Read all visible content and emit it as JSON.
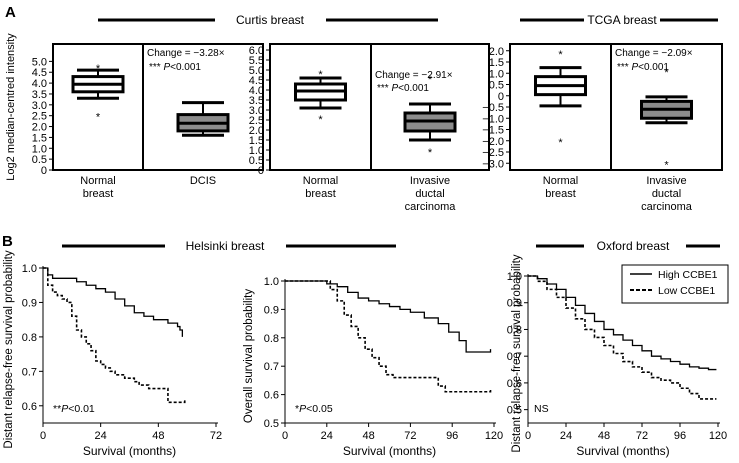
{
  "panels": {
    "a": "A",
    "b": "B"
  },
  "groups": {
    "curtis": "Curtis breast",
    "tcga": "TCGA breast",
    "helsinki": "Helsinki breast",
    "oxford": "Oxford breast"
  },
  "colors": {
    "normal_box": "#ffffff",
    "tumor_box": "#8c8c8c",
    "ink": "#000000"
  },
  "chart_data": [
    {
      "type": "box",
      "id": "curtis-dcis",
      "group": "Curtis breast",
      "ylabel": "Log2 median-centred intensity",
      "ylim": [
        0,
        5.8
      ],
      "yticks": [
        0,
        0.5,
        1,
        1.5,
        2,
        2.5,
        3,
        3.5,
        4,
        4.5,
        5
      ],
      "ytick_labels": [
        "0",
        "0.5",
        "1.0",
        "1.5",
        "2.0",
        "2.5",
        "3.0",
        "3.5",
        "4.0",
        "4.5",
        "5.0"
      ],
      "categories": [
        "Normal\nbreast",
        "DCIS"
      ],
      "boxes": [
        {
          "min": 3.3,
          "q1": 3.6,
          "median": 3.95,
          "q3": 4.3,
          "max": 4.6,
          "outliers": [
            4.75,
            2.5
          ]
        },
        {
          "min": 1.6,
          "q1": 1.8,
          "median": 2.15,
          "q3": 2.55,
          "max": 3.1,
          "outliers": []
        }
      ],
      "annotation": {
        "change": "Change = −3.28×",
        "stars": "***",
        "p": "P<0.001"
      }
    },
    {
      "type": "box",
      "id": "curtis-idc",
      "group": "Curtis breast",
      "ylim": [
        0,
        6.3
      ],
      "yticks": [
        0,
        0.5,
        1,
        1.5,
        2,
        2.5,
        3,
        3.5,
        4,
        4.5,
        5,
        5.5,
        6
      ],
      "ytick_labels": [
        "0",
        "0.5",
        "1.0",
        "1.5",
        "2.0",
        "2.5",
        "3.0",
        "3.5",
        "4.0",
        "4.5",
        "5.0",
        "5.5",
        "6.0"
      ],
      "categories": [
        "Normal\nbreast",
        "Invasive\nductal\ncarcinoma"
      ],
      "boxes": [
        {
          "min": 3.1,
          "q1": 3.5,
          "median": 3.95,
          "q3": 4.3,
          "max": 4.6,
          "outliers": [
            4.85,
            2.6
          ]
        },
        {
          "min": 1.5,
          "q1": 1.95,
          "median": 2.45,
          "q3": 2.85,
          "max": 3.3,
          "outliers": [
            4.6,
            0.95
          ]
        }
      ],
      "annotation": {
        "change": "Change = −2.91×",
        "stars": "***",
        "p": "P<0.001"
      }
    },
    {
      "type": "box",
      "id": "tcga",
      "group": "TCGA breast",
      "ylim": [
        -3.3,
        2.3
      ],
      "yticks": [
        -3,
        -2.5,
        -2,
        -1.5,
        -1,
        -0.5,
        0,
        0.5,
        1,
        1.5,
        2
      ],
      "ytick_labels": [
        "−3.0",
        "−2.5",
        "−2.0",
        "−1.5",
        "−1.0",
        "−0.5",
        "0",
        "0.5",
        "1.0",
        "1.5",
        "2.0"
      ],
      "categories": [
        "Normal\nbreast",
        "Invasive\nductal\ncarcinoma"
      ],
      "boxes": [
        {
          "min": -0.45,
          "q1": 0.05,
          "median": 0.45,
          "q3": 0.85,
          "max": 1.25,
          "outliers": [
            1.9,
            -2.0
          ]
        },
        {
          "min": -1.2,
          "q1": -1.0,
          "median": -0.6,
          "q3": -0.25,
          "max": -0.05,
          "outliers": [
            1.1,
            -3.0
          ]
        }
      ],
      "annotation": {
        "change": "Change = −2.09×",
        "stars": "***",
        "p": "P<0.001"
      }
    },
    {
      "type": "line",
      "id": "helsinki-drfs",
      "group": "Helsinki breast",
      "xlabel": "Survival (months)",
      "ylabel": "Distant relapse-free survival probability",
      "xlim": [
        0,
        72
      ],
      "ylim": [
        0.55,
        1.0
      ],
      "xticks": [
        0,
        24,
        48,
        72
      ],
      "yticks": [
        0.6,
        0.7,
        0.8,
        0.9,
        1.0
      ],
      "ytick_labels": [
        "0.6",
        "0.7",
        "0.8",
        "0.9",
        "1.0"
      ],
      "series": [
        {
          "name": "High CCBE1",
          "style": "solid",
          "points": [
            [
              0,
              1.0
            ],
            [
              2,
              0.98
            ],
            [
              4,
              0.97
            ],
            [
              10,
              0.97
            ],
            [
              14,
              0.96
            ],
            [
              18,
              0.95
            ],
            [
              22,
              0.94
            ],
            [
              26,
              0.93
            ],
            [
              30,
              0.91
            ],
            [
              34,
              0.89
            ],
            [
              38,
              0.87
            ],
            [
              42,
              0.86
            ],
            [
              46,
              0.85
            ],
            [
              50,
              0.85
            ],
            [
              52,
              0.84
            ],
            [
              54,
              0.84
            ],
            [
              56,
              0.83
            ],
            [
              57,
              0.82
            ],
            [
              58,
              0.8
            ]
          ]
        },
        {
          "name": "Low CCBE1",
          "style": "dashed",
          "points": [
            [
              0,
              1.0
            ],
            [
              2,
              0.95
            ],
            [
              4,
              0.93
            ],
            [
              6,
              0.92
            ],
            [
              8,
              0.91
            ],
            [
              10,
              0.9
            ],
            [
              12,
              0.86
            ],
            [
              14,
              0.82
            ],
            [
              16,
              0.8
            ],
            [
              18,
              0.78
            ],
            [
              20,
              0.76
            ],
            [
              22,
              0.73
            ],
            [
              24,
              0.72
            ],
            [
              26,
              0.71
            ],
            [
              28,
              0.7
            ],
            [
              30,
              0.69
            ],
            [
              34,
              0.68
            ],
            [
              38,
              0.67
            ],
            [
              40,
              0.66
            ],
            [
              44,
              0.65
            ],
            [
              50,
              0.65
            ],
            [
              52,
              0.61
            ],
            [
              58,
              0.61
            ],
            [
              59,
              0.62
            ]
          ]
        }
      ],
      "annotation": {
        "stars": "**",
        "p": "P<0.01"
      }
    },
    {
      "type": "line",
      "id": "helsinki-os",
      "group": "Helsinki breast",
      "xlabel": "Survival (months)",
      "ylabel": "Overall survival probability",
      "xlim": [
        0,
        120
      ],
      "ylim": [
        0.5,
        1.0
      ],
      "xticks": [
        0,
        24,
        48,
        72,
        96,
        120
      ],
      "yticks": [
        0.5,
        0.6,
        0.7,
        0.8,
        0.9,
        1.0
      ],
      "ytick_labels": [
        "0.5",
        "0.6",
        "0.7",
        "0.8",
        "0.9",
        "1.0"
      ],
      "series": [
        {
          "name": "High CCBE1",
          "style": "solid",
          "points": [
            [
              0,
              1.0
            ],
            [
              20,
              1.0
            ],
            [
              24,
              0.99
            ],
            [
              30,
              0.98
            ],
            [
              36,
              0.96
            ],
            [
              42,
              0.94
            ],
            [
              48,
              0.93
            ],
            [
              54,
              0.92
            ],
            [
              60,
              0.91
            ],
            [
              66,
              0.9
            ],
            [
              72,
              0.89
            ],
            [
              80,
              0.87
            ],
            [
              88,
              0.85
            ],
            [
              94,
              0.82
            ],
            [
              100,
              0.79
            ],
            [
              104,
              0.75
            ],
            [
              112,
              0.75
            ],
            [
              118,
              0.76
            ]
          ]
        },
        {
          "name": "Low CCBE1",
          "style": "dashed",
          "points": [
            [
              0,
              1.0
            ],
            [
              22,
              1.0
            ],
            [
              26,
              0.97
            ],
            [
              30,
              0.93
            ],
            [
              34,
              0.88
            ],
            [
              38,
              0.84
            ],
            [
              42,
              0.8
            ],
            [
              46,
              0.76
            ],
            [
              50,
              0.73
            ],
            [
              54,
              0.7
            ],
            [
              58,
              0.67
            ],
            [
              62,
              0.66
            ],
            [
              84,
              0.66
            ],
            [
              88,
              0.63
            ],
            [
              92,
              0.61
            ],
            [
              118,
              0.62
            ]
          ]
        }
      ],
      "annotation": {
        "stars": "*",
        "p": "P<0.05"
      }
    },
    {
      "type": "line",
      "id": "oxford-drfs",
      "group": "Oxford breast",
      "xlabel": "Survival (months)",
      "ylabel": "Distant relapse-free survival probability",
      "xlim": [
        0,
        120
      ],
      "ylim": [
        0.45,
        1.0
      ],
      "xticks": [
        0,
        24,
        48,
        72,
        96,
        120
      ],
      "yticks": [
        0.5,
        0.6,
        0.7,
        0.8,
        0.9,
        1.0
      ],
      "ytick_labels": [
        "0.5",
        "0.6",
        "0.7",
        "0.8",
        "0.9",
        "1.0"
      ],
      "legend": {
        "position": "top-right"
      },
      "series": [
        {
          "name": "High CCBE1",
          "style": "solid",
          "points": [
            [
              0,
              1.0
            ],
            [
              6,
              0.99
            ],
            [
              12,
              0.97
            ],
            [
              18,
              0.95
            ],
            [
              24,
              0.92
            ],
            [
              30,
              0.89
            ],
            [
              36,
              0.86
            ],
            [
              42,
              0.83
            ],
            [
              48,
              0.8
            ],
            [
              54,
              0.78
            ],
            [
              60,
              0.76
            ],
            [
              66,
              0.74
            ],
            [
              72,
              0.72
            ],
            [
              78,
              0.7
            ],
            [
              84,
              0.69
            ],
            [
              90,
              0.68
            ],
            [
              96,
              0.67
            ],
            [
              102,
              0.66
            ],
            [
              108,
              0.655
            ],
            [
              114,
              0.65
            ],
            [
              119,
              0.65
            ]
          ]
        },
        {
          "name": "Low CCBE1",
          "style": "dashed",
          "points": [
            [
              0,
              1.0
            ],
            [
              6,
              0.98
            ],
            [
              12,
              0.95
            ],
            [
              18,
              0.92
            ],
            [
              24,
              0.88
            ],
            [
              30,
              0.84
            ],
            [
              36,
              0.8
            ],
            [
              42,
              0.77
            ],
            [
              48,
              0.74
            ],
            [
              54,
              0.71
            ],
            [
              60,
              0.68
            ],
            [
              66,
              0.66
            ],
            [
              72,
              0.64
            ],
            [
              78,
              0.62
            ],
            [
              84,
              0.61
            ],
            [
              90,
              0.6
            ],
            [
              96,
              0.58
            ],
            [
              102,
              0.56
            ],
            [
              108,
              0.54
            ],
            [
              114,
              0.54
            ],
            [
              119,
              0.54
            ]
          ]
        }
      ],
      "annotation": {
        "text": "NS"
      }
    }
  ]
}
